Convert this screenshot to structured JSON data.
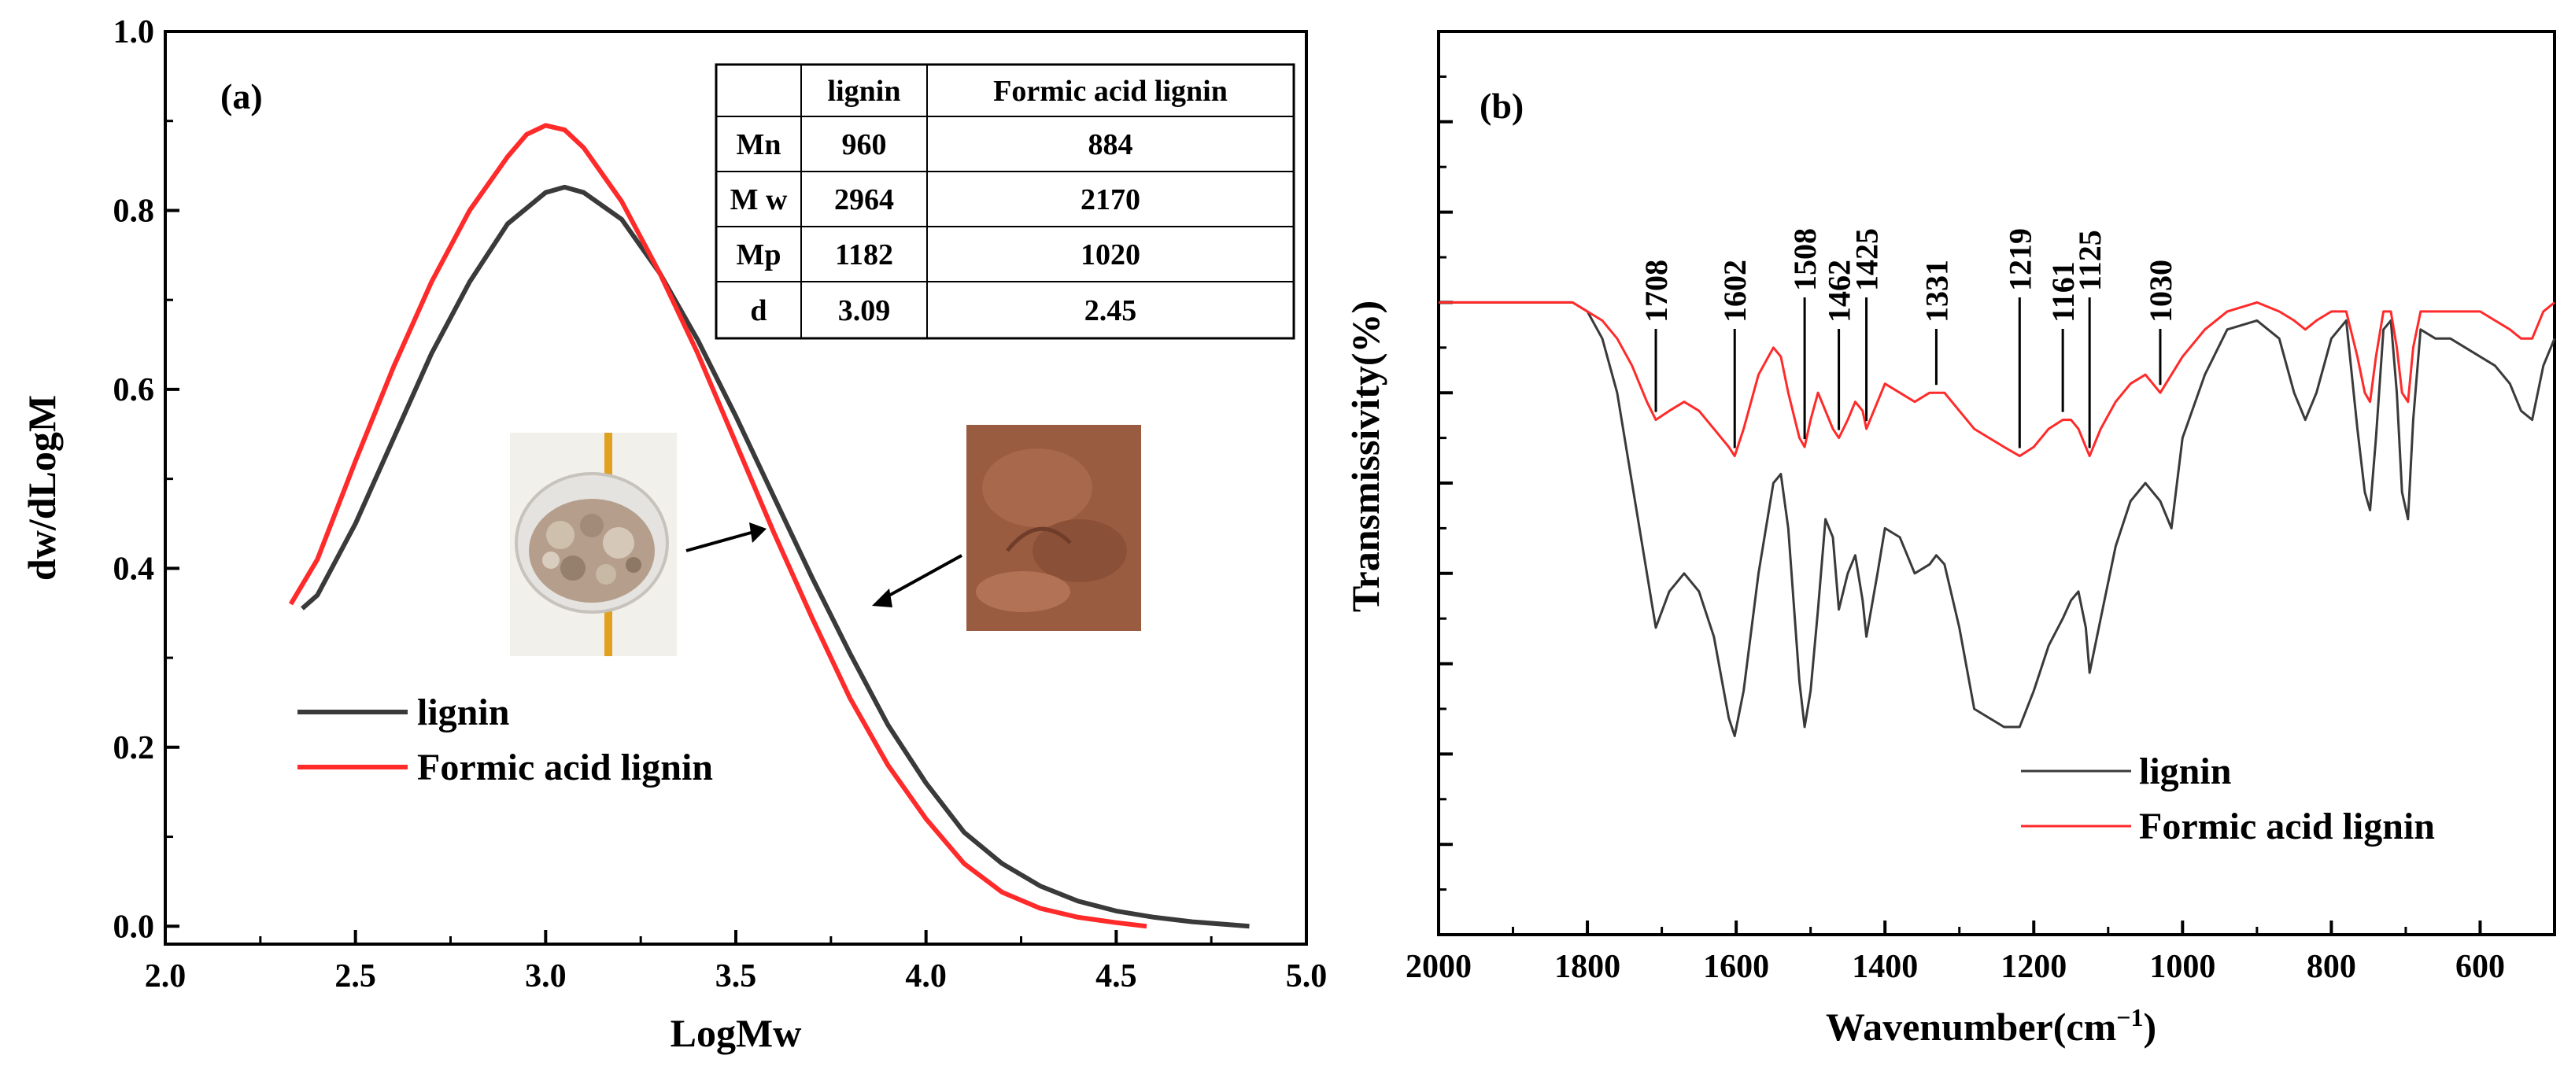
{
  "colors": {
    "lignin": "#3a3a3a",
    "formic": "#ff2a2a",
    "axis": "#000000"
  },
  "chart_data": [
    {
      "panel": "(a)",
      "type": "line",
      "xlabel": "LogMw",
      "ylabel": "dw/dLogM",
      "xlim": [
        2.0,
        5.0
      ],
      "ylim": [
        -0.02,
        1.0
      ],
      "xticks": [
        2.0,
        2.5,
        3.0,
        3.5,
        4.0,
        4.5,
        5.0
      ],
      "xtick_labels": [
        "2.0",
        "2.5",
        "3.0",
        "3.5",
        "4.0",
        "4.5",
        "5.0"
      ],
      "yticks": [
        0.0,
        0.2,
        0.4,
        0.6,
        0.8,
        1.0
      ],
      "ytick_labels": [
        "0.0",
        "0.2",
        "0.4",
        "0.6",
        "0.8",
        "1.0"
      ],
      "legend": [
        "lignin",
        "Formic acid lignin"
      ],
      "legend_position": "bottom-left",
      "series": [
        {
          "name": "lignin",
          "color_key": "lignin",
          "x": [
            2.36,
            2.4,
            2.5,
            2.6,
            2.7,
            2.8,
            2.9,
            3.0,
            3.05,
            3.1,
            3.2,
            3.3,
            3.4,
            3.5,
            3.6,
            3.7,
            3.8,
            3.9,
            4.0,
            4.1,
            4.2,
            4.3,
            4.4,
            4.5,
            4.6,
            4.7,
            4.85
          ],
          "y": [
            0.355,
            0.37,
            0.45,
            0.545,
            0.64,
            0.72,
            0.785,
            0.82,
            0.826,
            0.82,
            0.79,
            0.73,
            0.655,
            0.57,
            0.48,
            0.39,
            0.305,
            0.225,
            0.16,
            0.105,
            0.07,
            0.045,
            0.028,
            0.017,
            0.01,
            0.005,
            0.0
          ]
        },
        {
          "name": "Formic acid lignin",
          "color_key": "formic",
          "x": [
            2.33,
            2.4,
            2.5,
            2.6,
            2.7,
            2.8,
            2.9,
            2.95,
            3.0,
            3.05,
            3.1,
            3.2,
            3.3,
            3.4,
            3.5,
            3.6,
            3.7,
            3.8,
            3.9,
            4.0,
            4.1,
            4.2,
            4.3,
            4.4,
            4.5,
            4.58
          ],
          "y": [
            0.36,
            0.41,
            0.52,
            0.625,
            0.72,
            0.8,
            0.86,
            0.885,
            0.895,
            0.89,
            0.87,
            0.81,
            0.73,
            0.64,
            0.54,
            0.44,
            0.345,
            0.255,
            0.18,
            0.12,
            0.07,
            0.038,
            0.02,
            0.01,
            0.004,
            0.0
          ]
        }
      ],
      "table": {
        "headers": [
          "",
          "lignin",
          "Formic acid lignin"
        ],
        "rows": [
          [
            "Mn",
            "960",
            "884"
          ],
          [
            "M w",
            "2964",
            "2170"
          ],
          [
            "Mp",
            "1182",
            "1020"
          ],
          [
            "d",
            "3.09",
            "2.45"
          ]
        ]
      }
    },
    {
      "panel": "(b)",
      "type": "line",
      "xlabel": "Wavenumber(cm",
      "xlabel_sup": "−1",
      "xlabel_end": ")",
      "ylabel": "Transmissivity(%)",
      "xlim": [
        2000,
        500
      ],
      "ylim": [
        0,
        100
      ],
      "xticks": [
        2000,
        1800,
        1600,
        1400,
        1200,
        1000,
        800,
        600
      ],
      "xtick_labels": [
        "2000",
        "1800",
        "1600",
        "1400",
        "1200",
        "1000",
        "800",
        "600"
      ],
      "legend": [
        "lignin",
        "Formic acid lignin"
      ],
      "legend_position": "bottom-right",
      "peak_labels": [
        "1708",
        "1602",
        "1508",
        "1462",
        "1425",
        "1331",
        "1219",
        "1161",
        "1125",
        "1030"
      ],
      "peak_positions": [
        1708,
        1602,
        1508,
        1462,
        1425,
        1331,
        1219,
        1161,
        1125,
        1030
      ],
      "series": [
        {
          "name": "lignin",
          "color_key": "lignin",
          "x": [
            2000,
            1900,
            1820,
            1800,
            1780,
            1760,
            1740,
            1720,
            1708,
            1690,
            1670,
            1650,
            1630,
            1610,
            1602,
            1590,
            1570,
            1550,
            1540,
            1530,
            1515,
            1508,
            1500,
            1490,
            1480,
            1470,
            1462,
            1450,
            1440,
            1430,
            1425,
            1410,
            1400,
            1380,
            1360,
            1340,
            1331,
            1320,
            1300,
            1280,
            1260,
            1240,
            1219,
            1200,
            1180,
            1161,
            1150,
            1140,
            1130,
            1125,
            1110,
            1090,
            1070,
            1050,
            1030,
            1015,
            1000,
            970,
            940,
            900,
            870,
            850,
            835,
            820,
            800,
            780,
            765,
            755,
            748,
            740,
            730,
            720,
            712,
            705,
            697,
            690,
            680,
            660,
            640,
            620,
            600,
            580,
            560,
            545,
            530,
            515,
            500
          ],
          "y": [
            70,
            70,
            70,
            69,
            66,
            60,
            50,
            40,
            34,
            38,
            40,
            38,
            33,
            24,
            22,
            27,
            40,
            50,
            51,
            45,
            28,
            23,
            27,
            36,
            46,
            44,
            36,
            40,
            42,
            37,
            33,
            40,
            45,
            44,
            40,
            41,
            42,
            41,
            34,
            25,
            24,
            23,
            23,
            27,
            32,
            35,
            37,
            38,
            34,
            29,
            35,
            43,
            48,
            50,
            48,
            45,
            55,
            62,
            67,
            68,
            66,
            60,
            57,
            60,
            66,
            68,
            56,
            49,
            47,
            55,
            67,
            68,
            60,
            49,
            46,
            57,
            67,
            66,
            66,
            65,
            64,
            63,
            61,
            58,
            57,
            63,
            66
          ]
        },
        {
          "name": "Formic acid lignin",
          "color_key": "formic",
          "x": [
            2000,
            1900,
            1820,
            1800,
            1780,
            1760,
            1740,
            1720,
            1708,
            1690,
            1670,
            1650,
            1630,
            1610,
            1602,
            1590,
            1570,
            1550,
            1540,
            1530,
            1515,
            1508,
            1500,
            1490,
            1480,
            1470,
            1462,
            1450,
            1440,
            1430,
            1425,
            1410,
            1400,
            1380,
            1360,
            1340,
            1331,
            1320,
            1300,
            1280,
            1260,
            1240,
            1219,
            1200,
            1180,
            1161,
            1150,
            1140,
            1130,
            1125,
            1110,
            1090,
            1070,
            1050,
            1030,
            1015,
            1000,
            970,
            940,
            900,
            870,
            850,
            835,
            820,
            800,
            780,
            765,
            755,
            748,
            740,
            730,
            720,
            712,
            705,
            697,
            690,
            680,
            660,
            640,
            620,
            600,
            580,
            560,
            545,
            530,
            515,
            500
          ],
          "y": [
            70,
            70,
            70,
            69,
            68,
            66,
            63,
            59,
            57,
            58,
            59,
            58,
            56,
            54,
            53,
            56,
            62,
            65,
            64,
            60,
            55,
            54,
            57,
            60,
            58,
            56,
            55,
            57,
            59,
            58,
            56,
            59,
            61,
            60,
            59,
            60,
            60,
            60,
            58,
            56,
            55,
            54,
            53,
            54,
            56,
            57,
            57,
            56,
            54,
            53,
            56,
            59,
            61,
            62,
            60,
            62,
            64,
            67,
            69,
            70,
            69,
            68,
            67,
            68,
            69,
            69,
            64,
            60,
            59,
            64,
            69,
            69,
            65,
            60,
            59,
            65,
            69,
            69,
            69,
            69,
            69,
            68,
            67,
            66,
            66,
            69,
            70
          ]
        }
      ]
    }
  ]
}
